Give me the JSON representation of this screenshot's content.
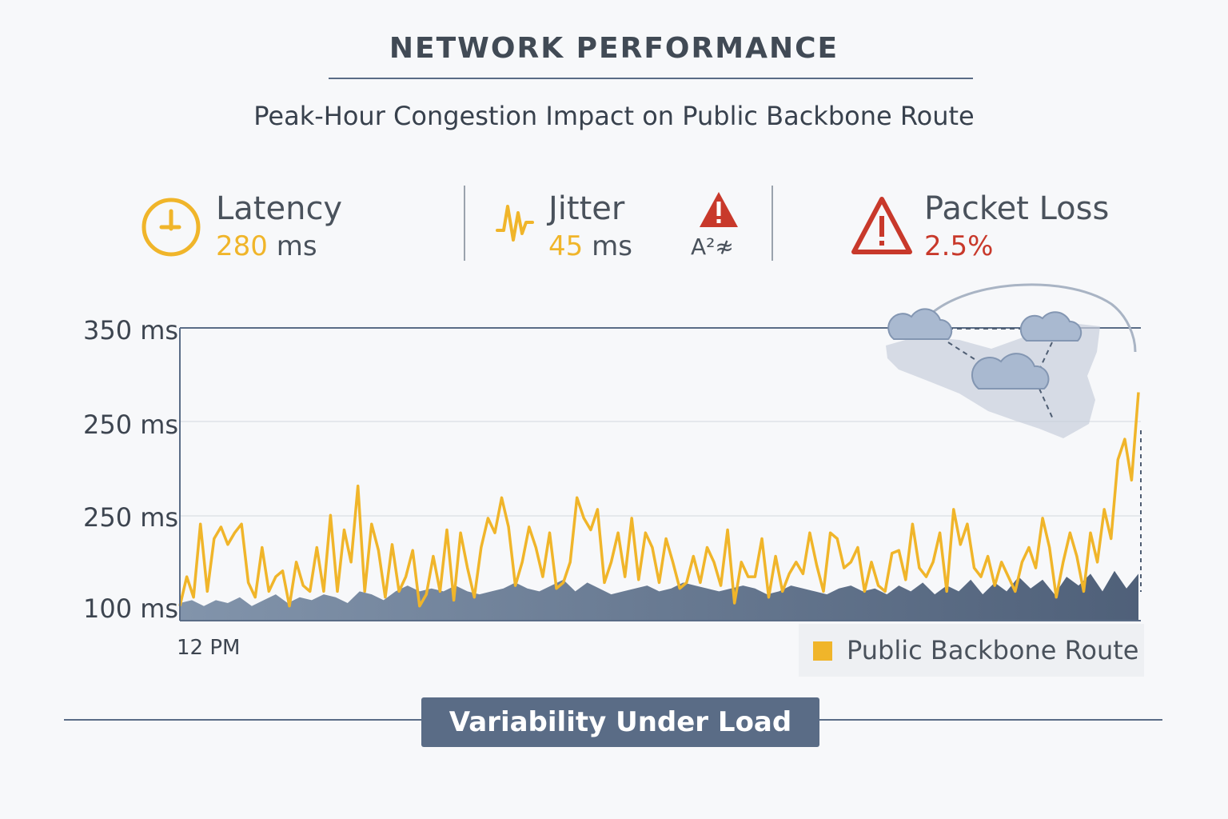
{
  "header": {
    "title": "NETWORK PERFORMANCE",
    "subtitle": "Peak-Hour Congestion Impact on Public Backbone Route"
  },
  "metrics": {
    "latency": {
      "label": "Latency",
      "value": "280",
      "unit": "ms",
      "icon": "clock-icon",
      "color": "#f0b52a"
    },
    "jitter": {
      "label": "Jitter",
      "value": "45",
      "unit": "ms",
      "icon": "waveform-icon",
      "color": "#f0b52a"
    },
    "warning": {
      "caption": "A²≉",
      "icon": "warning-icon",
      "color": "#c8392b"
    },
    "packet_loss": {
      "label": "Packet Loss",
      "value": "2.5%",
      "icon": "warning-icon",
      "color": "#c8392b"
    }
  },
  "chart_data": {
    "type": "line",
    "yticks": [
      "350 ms",
      "250 ms",
      "250 ms",
      "100 ms"
    ],
    "xticks": [
      "12 PM"
    ],
    "legend": [
      "Public Backbone Route"
    ],
    "series": [
      {
        "name": "Public Backbone Route",
        "color": "#f0b52a",
        "values": [
          0.05,
          0.15,
          0.08,
          0.33,
          0.1,
          0.28,
          0.32,
          0.26,
          0.3,
          0.33,
          0.13,
          0.08,
          0.25,
          0.1,
          0.15,
          0.17,
          0.05,
          0.2,
          0.12,
          0.1,
          0.25,
          0.1,
          0.36,
          0.1,
          0.31,
          0.2,
          0.46,
          0.1,
          0.33,
          0.24,
          0.08,
          0.26,
          0.1,
          0.15,
          0.24,
          0.05,
          0.09,
          0.22,
          0.1,
          0.31,
          0.07,
          0.3,
          0.18,
          0.08,
          0.25,
          0.35,
          0.3,
          0.42,
          0.32,
          0.12,
          0.2,
          0.32,
          0.25,
          0.15,
          0.3,
          0.11,
          0.13,
          0.2,
          0.42,
          0.35,
          0.31,
          0.38,
          0.13,
          0.2,
          0.3,
          0.15,
          0.35,
          0.14,
          0.3,
          0.25,
          0.13,
          0.28,
          0.2,
          0.11,
          0.13,
          0.22,
          0.13,
          0.25,
          0.2,
          0.12,
          0.31,
          0.06,
          0.2,
          0.15,
          0.15,
          0.28,
          0.08,
          0.22,
          0.1,
          0.16,
          0.2,
          0.16,
          0.3,
          0.19,
          0.1,
          0.3,
          0.28,
          0.18,
          0.2,
          0.25,
          0.1,
          0.2,
          0.12,
          0.1,
          0.23,
          0.24,
          0.14,
          0.33,
          0.18,
          0.15,
          0.2,
          0.3,
          0.1,
          0.38,
          0.26,
          0.33,
          0.18,
          0.15,
          0.22,
          0.12,
          0.2,
          0.15,
          0.1,
          0.2,
          0.25,
          0.18,
          0.35,
          0.25,
          0.08,
          0.2,
          0.3,
          0.22,
          0.1,
          0.3,
          0.2,
          0.38,
          0.28,
          0.55,
          0.62,
          0.48,
          0.78
        ],
        "values_note": "relative height, 0 = bottom of plot, 1 = top line (350 ms)"
      },
      {
        "name": "",
        "color": "#5a6c86",
        "values": [
          0.06,
          0.07,
          0.05,
          0.07,
          0.06,
          0.08,
          0.05,
          0.07,
          0.09,
          0.06,
          0.08,
          0.07,
          0.09,
          0.08,
          0.06,
          0.1,
          0.09,
          0.07,
          0.1,
          0.12,
          0.1,
          0.11,
          0.1,
          0.12,
          0.1,
          0.09,
          0.1,
          0.11,
          0.13,
          0.11,
          0.1,
          0.12,
          0.14,
          0.1,
          0.13,
          0.11,
          0.09,
          0.1,
          0.11,
          0.12,
          0.1,
          0.11,
          0.13,
          0.12,
          0.11,
          0.1,
          0.11,
          0.12,
          0.11,
          0.09,
          0.1,
          0.12,
          0.11,
          0.1,
          0.09,
          0.11,
          0.12,
          0.1,
          0.11,
          0.09,
          0.12,
          0.1,
          0.13,
          0.09,
          0.12,
          0.1,
          0.14,
          0.09,
          0.13,
          0.1,
          0.15,
          0.11,
          0.14,
          0.09,
          0.15,
          0.12,
          0.16,
          0.1,
          0.17,
          0.11,
          0.16
        ]
      }
    ]
  },
  "legend": {
    "label": "Public Backbone Route",
    "color": "#f0b52a"
  },
  "footer": {
    "badge": "Variability Under Load"
  }
}
